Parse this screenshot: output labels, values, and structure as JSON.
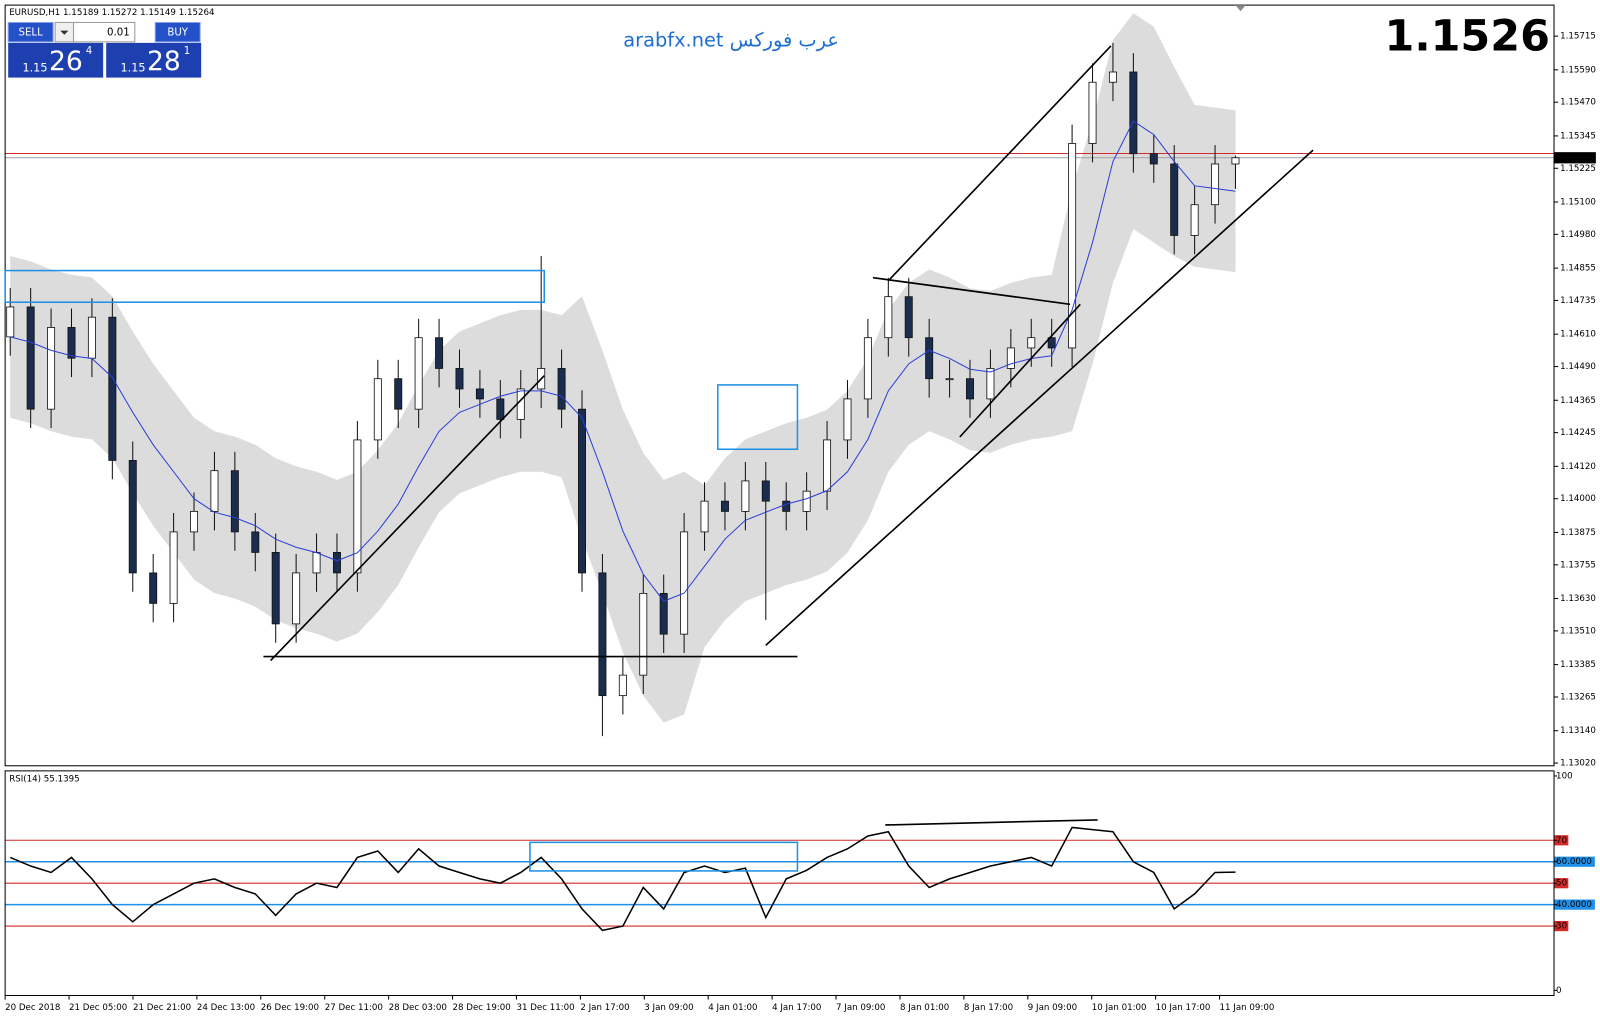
{
  "header": {
    "symbol_line": "EURUSD,H1  1.15189 1.15272 1.15149 1.15264"
  },
  "trade_panel": {
    "sell": "SELL",
    "lot": "0.01",
    "buy": "BUY",
    "sell_big": "1.15",
    "sell_main": "26",
    "sell_sup": "4",
    "buy_big": "1.15",
    "buy_main": "28",
    "buy_sup": "1"
  },
  "watermark": "arabfx.net عرب فوركس",
  "big_price": "1.1526",
  "chart_data": [
    {
      "type": "candlestick",
      "open": [
        1.146,
        1.14711,
        1.14332,
        1.14635,
        1.14521,
        1.14673,
        1.14142,
        1.13725,
        1.13612,
        1.13877,
        1.13953,
        1.14104,
        1.13877,
        1.13801,
        1.13536,
        1.13725,
        1.13801,
        1.13725,
        1.14218,
        1.14445,
        1.14332,
        1.14597,
        1.14483,
        1.14407,
        1.1437,
        1.14294,
        1.14407,
        1.14483,
        1.14332,
        1.13725,
        1.1327,
        1.13346,
        1.13649,
        1.13498,
        1.13877,
        1.13991,
        1.13953,
        1.14066,
        1.13991,
        1.13953,
        1.14028,
        1.14218,
        1.1437,
        1.14597,
        1.14749,
        1.14597,
        1.14445,
        1.14445,
        1.1437,
        1.14483,
        1.14559,
        1.14597,
        1.14559,
        1.15317,
        1.15544,
        1.15582,
        1.15279,
        1.15241,
        1.14976,
        1.1509,
        1.15241
      ],
      "high": [
        1.14781,
        1.14781,
        1.14705,
        1.14705,
        1.14743,
        1.14743,
        1.14212,
        1.13795,
        1.13947,
        1.14023,
        1.14174,
        1.14174,
        1.13947,
        1.13871,
        1.13795,
        1.13871,
        1.13871,
        1.14288,
        1.14515,
        1.14515,
        1.14667,
        1.14667,
        1.14553,
        1.14477,
        1.1444,
        1.14477,
        1.149,
        1.14553,
        1.14402,
        1.13795,
        1.13416,
        1.13719,
        1.13719,
        1.13947,
        1.14061,
        1.14061,
        1.14136,
        1.14136,
        1.14061,
        1.14098,
        1.14288,
        1.1444,
        1.14667,
        1.14819,
        1.14819,
        1.14667,
        1.14515,
        1.14515,
        1.14553,
        1.14629,
        1.14667,
        1.14667,
        1.15387,
        1.15614,
        1.1569,
        1.15652,
        1.15349,
        1.15311,
        1.1516,
        1.15311,
        1.15272
      ],
      "low": [
        1.1453,
        1.14262,
        1.14262,
        1.14451,
        1.14451,
        1.14072,
        1.13655,
        1.13542,
        1.13542,
        1.13807,
        1.13883,
        1.13807,
        1.13731,
        1.13466,
        1.13466,
        1.13655,
        1.13655,
        1.13655,
        1.14148,
        1.14262,
        1.14262,
        1.14413,
        1.14337,
        1.143,
        1.14224,
        1.14224,
        1.14337,
        1.14262,
        1.13655,
        1.1312,
        1.132,
        1.13276,
        1.13428,
        1.13428,
        1.13807,
        1.13883,
        1.13883,
        1.1355,
        1.13883,
        1.13883,
        1.13958,
        1.14148,
        1.143,
        1.14527,
        1.14527,
        1.14375,
        1.14375,
        1.143,
        1.143,
        1.14413,
        1.14489,
        1.14489,
        1.14489,
        1.15247,
        1.15474,
        1.15209,
        1.15171,
        1.14906,
        1.14906,
        1.1502,
        1.15149
      ],
      "close": [
        1.14711,
        1.14332,
        1.14635,
        1.14521,
        1.14673,
        1.14142,
        1.13725,
        1.13612,
        1.13877,
        1.13953,
        1.14104,
        1.13877,
        1.13801,
        1.13536,
        1.13725,
        1.13801,
        1.13725,
        1.14218,
        1.14445,
        1.14332,
        1.14597,
        1.14483,
        1.14407,
        1.1437,
        1.14294,
        1.14407,
        1.14483,
        1.14332,
        1.13725,
        1.1327,
        1.13346,
        1.13649,
        1.13498,
        1.13877,
        1.13991,
        1.13953,
        1.14066,
        1.13991,
        1.13953,
        1.14028,
        1.14218,
        1.1437,
        1.14597,
        1.14749,
        1.14597,
        1.14445,
        1.14445,
        1.1437,
        1.14483,
        1.14559,
        1.14597,
        1.14559,
        1.15317,
        1.15544,
        1.15582,
        1.15279,
        1.15241,
        1.14976,
        1.1509,
        1.15241,
        1.15264
      ],
      "bull_color": "#ffffff",
      "bear_color": "#1b2d4f",
      "wick_color": "#111111",
      "ma": {
        "color": "#2a3fd6",
        "values": [
          1.146,
          1.1458,
          1.1455,
          1.1453,
          1.1452,
          1.1445,
          1.1432,
          1.142,
          1.141,
          1.14,
          1.1395,
          1.1393,
          1.139,
          1.1385,
          1.1382,
          1.138,
          1.1377,
          1.138,
          1.1388,
          1.1398,
          1.1412,
          1.1425,
          1.1432,
          1.1435,
          1.1438,
          1.144,
          1.144,
          1.1438,
          1.143,
          1.141,
          1.1388,
          1.1372,
          1.1362,
          1.1365,
          1.1375,
          1.1385,
          1.1392,
          1.1395,
          1.1398,
          1.14,
          1.1403,
          1.141,
          1.1422,
          1.144,
          1.145,
          1.1455,
          1.1452,
          1.1448,
          1.1447,
          1.145,
          1.1452,
          1.1453,
          1.147,
          1.1495,
          1.1525,
          1.154,
          1.1535,
          1.1525,
          1.1516,
          1.1515,
          1.1514
        ]
      },
      "band": {
        "color": "#dcdcdc",
        "upper": [
          1.149,
          1.1488,
          1.1485,
          1.1483,
          1.1482,
          1.1475,
          1.1462,
          1.145,
          1.144,
          1.143,
          1.1425,
          1.1423,
          1.142,
          1.1415,
          1.1412,
          1.141,
          1.1407,
          1.141,
          1.1418,
          1.1428,
          1.1442,
          1.1455,
          1.1462,
          1.1465,
          1.1468,
          1.147,
          1.147,
          1.1468,
          1.1475,
          1.1455,
          1.1433,
          1.1417,
          1.1407,
          1.141,
          1.1405,
          1.1415,
          1.1422,
          1.1425,
          1.1428,
          1.143,
          1.1433,
          1.144,
          1.1452,
          1.147,
          1.148,
          1.1485,
          1.1482,
          1.1478,
          1.1477,
          1.148,
          1.1482,
          1.1483,
          1.1515,
          1.154,
          1.157,
          1.158,
          1.1575,
          1.156,
          1.1546,
          1.1545,
          1.1544
        ],
        "lower": [
          1.143,
          1.1428,
          1.1425,
          1.1423,
          1.1422,
          1.1415,
          1.1402,
          1.139,
          1.138,
          1.137,
          1.1365,
          1.1363,
          1.136,
          1.1355,
          1.1352,
          1.135,
          1.1347,
          1.135,
          1.1358,
          1.1368,
          1.1382,
          1.1395,
          1.1402,
          1.1405,
          1.1408,
          1.141,
          1.141,
          1.1408,
          1.1385,
          1.1365,
          1.1343,
          1.1327,
          1.1317,
          1.132,
          1.1345,
          1.1355,
          1.1362,
          1.1365,
          1.1368,
          1.137,
          1.1373,
          1.138,
          1.1392,
          1.141,
          1.142,
          1.1425,
          1.1422,
          1.1418,
          1.1417,
          1.142,
          1.1422,
          1.1423,
          1.1425,
          1.145,
          1.148,
          1.15,
          1.1495,
          1.149,
          1.1486,
          1.1485,
          1.1484
        ]
      },
      "ylim": [
        1.1301,
        1.1583
      ],
      "yticks": [
        1.15715,
        {
          "value": 1.1559,
          "label": "1.15590"
        },
        {
          "value": 1.1547,
          "label": "1.15470"
        },
        1.15345,
        1.15225,
        {
          "value": 1.151,
          "label": "1.15100"
        },
        {
          "value": 1.1498,
          "label": "1.14980"
        },
        1.14855,
        1.14735,
        {
          "value": 1.1461,
          "label": "1.14610"
        },
        {
          "value": 1.1449,
          "label": "1.14490"
        },
        1.14365,
        1.14245,
        {
          "value": 1.1412,
          "label": "1.14120"
        },
        {
          "value": 1.14,
          "label": "1.14000"
        },
        1.13875,
        1.13755,
        {
          "value": 1.1363,
          "label": "1.13630"
        },
        {
          "value": 1.1351,
          "label": "1.13510"
        },
        1.13385,
        1.13265,
        {
          "value": 1.1314,
          "label": "1.13140"
        },
        {
          "value": 1.1302,
          "label": "1.13020"
        }
      ],
      "ask_line": {
        "value": 1.1528,
        "color": "#d42a2a"
      },
      "last_price": 1.15264,
      "xtick_labels": [
        "20 Dec 2018",
        "21 Dec 05:00",
        "21 Dec 21:00",
        "24 Dec 13:00",
        "26 Dec 19:00",
        "27 Dec 11:00",
        "28 Dec 03:00",
        "28 Dec 19:00",
        "31 Dec 11:00",
        "2 Jan 17:00",
        "3 Jan 09:00",
        "4 Jan 01:00",
        "4 Jan 17:00",
        "7 Jan 09:00",
        "8 Jan 01:00",
        "8 Jan 17:00",
        "9 Jan 09:00",
        "10 Jan 01:00",
        "10 Jan 17:00",
        "11 Jan 09:00"
      ]
    },
    {
      "type": "line",
      "title": "RSI(14) 55.1395",
      "color": "#000000",
      "values": [
        62,
        58,
        55,
        62,
        52,
        40,
        32,
        40,
        45,
        50,
        52,
        48,
        45,
        35,
        45,
        50,
        48,
        62,
        65,
        55,
        66,
        58,
        55,
        52,
        50,
        55,
        62,
        52,
        38,
        28,
        30,
        48,
        38,
        55,
        58,
        55,
        57,
        34,
        52,
        56,
        62,
        66,
        72,
        74,
        58,
        48,
        52,
        55,
        58,
        60,
        62,
        58,
        76,
        75,
        74,
        60,
        55,
        38,
        45,
        55,
        55.1395
      ],
      "ylim": [
        0,
        100
      ],
      "yticks": [
        100,
        70,
        {
          "value": 60,
          "label": "60.0000"
        },
        50,
        {
          "value": 40,
          "label": "40.0000"
        },
        30,
        0
      ],
      "levels": [
        {
          "value": 70,
          "color": "#d42a2a"
        },
        {
          "value": 60,
          "color": "#1e90e8"
        },
        {
          "value": 50,
          "color": "#d42a2a"
        },
        {
          "value": 40,
          "color": "#1e90e8"
        },
        {
          "value": 30,
          "color": "#d42a2a"
        }
      ]
    }
  ]
}
